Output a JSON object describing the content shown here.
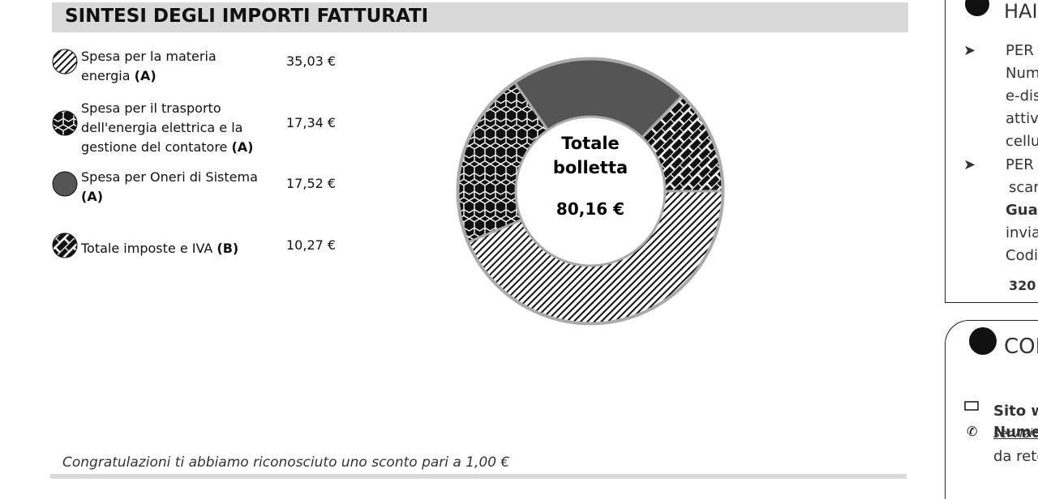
{
  "section_title": "SINTESI DEGLI IMPORTI FATTURATI",
  "chart_data": {
    "type": "pie",
    "donut": true,
    "legend": [
      {
        "text": "Spesa per la materia energia",
        "suffix": "(A)"
      },
      {
        "text": "Spesa per il trasporto dell'energia elettrica e la gestione del contatore",
        "suffix": "(A)"
      },
      {
        "text": "Spesa per Oneri di Sistema",
        "suffix": "(A)"
      },
      {
        "text": "Totale imposte e IVA",
        "suffix": "(B)"
      }
    ],
    "values": [
      35.03,
      17.34,
      17.52,
      10.27
    ],
    "value_labels": [
      "35,03 €",
      "17,34 €",
      "17,52 €",
      "10,27 €"
    ],
    "fills": [
      "diag",
      "hex",
      "#555555",
      "brick"
    ],
    "center_title": "Totale bolletta",
    "center_value": "80,16 €"
  },
  "footnote": "Congratulazioni ti abbiamo riconosciuto uno sconto pari a 1,00 €",
  "side_panel": {
    "heading": "HAI",
    "lines": [
      "PER",
      "Num",
      "e-dis",
      "attivo",
      "cellu",
      "PER",
      "scar",
      "Guas",
      "invia",
      "Codi",
      "320"
    ],
    "contacts_heading": "CON",
    "contacts": [
      "Sito w",
      "servizio",
      "Nume",
      "da rete"
    ]
  }
}
